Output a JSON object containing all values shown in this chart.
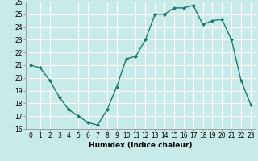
{
  "x": [
    0,
    1,
    2,
    3,
    4,
    5,
    6,
    7,
    8,
    9,
    10,
    11,
    12,
    13,
    14,
    15,
    16,
    17,
    18,
    19,
    20,
    21,
    22,
    23
  ],
  "y": [
    21.0,
    20.8,
    19.8,
    18.5,
    17.5,
    17.0,
    16.5,
    16.3,
    17.5,
    19.3,
    21.5,
    21.7,
    23.0,
    25.0,
    25.0,
    25.5,
    25.5,
    25.7,
    24.2,
    24.5,
    24.6,
    23.0,
    19.8,
    17.9
  ],
  "line_color": "#1a7a6e",
  "marker": "D",
  "marker_size": 2.0,
  "bg_color": "#c8eae8",
  "grid_color": "#ffffff",
  "xlabel": "Humidex (Indice chaleur)",
  "ylim": [
    16,
    26
  ],
  "xlim": [
    -0.5,
    23.5
  ],
  "yticks": [
    16,
    17,
    18,
    19,
    20,
    21,
    22,
    23,
    24,
    25,
    26
  ],
  "xticks": [
    0,
    1,
    2,
    3,
    4,
    5,
    6,
    7,
    8,
    9,
    10,
    11,
    12,
    13,
    14,
    15,
    16,
    17,
    18,
    19,
    20,
    21,
    22,
    23
  ],
  "xlabel_fontsize": 6.5,
  "tick_fontsize": 5.5,
  "line_width": 1.0
}
